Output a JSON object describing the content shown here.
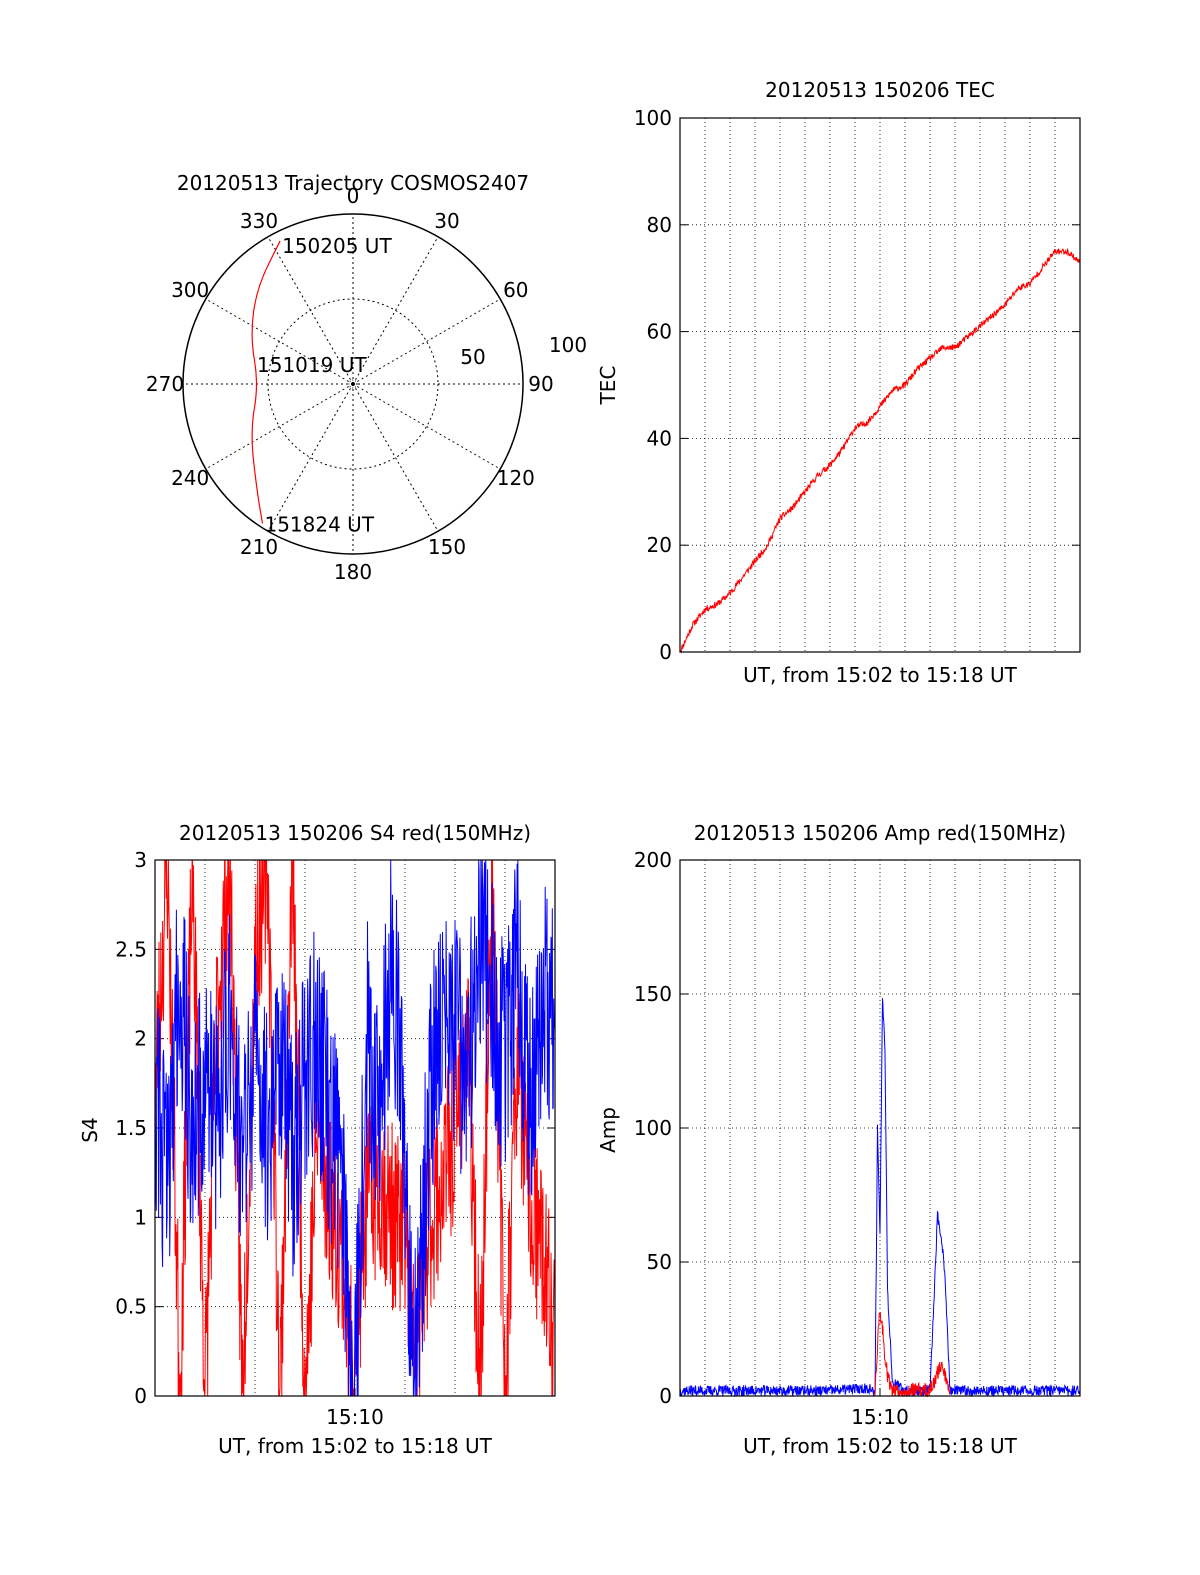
{
  "chart_data": [
    {
      "type": "polar",
      "title": "20120513 Trajectory COSMOS2407",
      "azimuth_labels": [
        "0",
        "30",
        "60",
        "90",
        "120",
        "150",
        "180",
        "210",
        "240",
        "270",
        "300",
        "330"
      ],
      "radial_labels": [
        "50",
        "100"
      ],
      "elevation_range": [
        0,
        90
      ],
      "grid": true,
      "trajectory": {
        "color": "#ff0000",
        "points": [
          {
            "az": 333,
            "el": 5
          },
          {
            "az": 315,
            "el": 18
          },
          {
            "az": 295,
            "el": 30
          },
          {
            "az": 270,
            "el": 40
          },
          {
            "az": 245,
            "el": 30
          },
          {
            "az": 222,
            "el": 14
          },
          {
            "az": 213,
            "el": 2
          }
        ],
        "annotations": [
          "150205 UT",
          "151019 UT",
          "151824 UT"
        ]
      }
    },
    {
      "type": "line",
      "title": "20120513 150206 TEC",
      "xlabel": "UT, from 15:02 to 15:18 UT",
      "ylabel": "TEC",
      "xlim": [
        0,
        16
      ],
      "ylim": [
        0,
        100
      ],
      "yticks": [
        "0",
        "20",
        "40",
        "60",
        "80",
        "100"
      ],
      "grid": true,
      "series": [
        {
          "color": "#ff0000",
          "x": [
            0,
            0.5,
            1.0,
            1.5,
            2.0,
            2.5,
            3.0,
            3.5,
            4.0,
            4.5,
            5.0,
            5.5,
            6.0,
            6.5,
            7.0,
            7.5,
            8.0,
            8.5,
            9.0,
            9.5,
            10.0,
            10.5,
            11.0,
            11.5,
            12.0,
            12.5,
            13.0,
            13.5,
            14.0,
            14.5,
            15.0,
            15.5,
            16.0
          ],
          "y": [
            0,
            5,
            8,
            9,
            11,
            14,
            17,
            20,
            25,
            27,
            30,
            33,
            35,
            38,
            42,
            43,
            46,
            49,
            50,
            53,
            55,
            57,
            57,
            59,
            61,
            63,
            65,
            68,
            69,
            72,
            75,
            75,
            73
          ]
        }
      ]
    },
    {
      "type": "line",
      "title": "20120513 150206 S4 red(150MHz)",
      "xlabel": "UT, from 15:02 to 15:18 UT",
      "ylabel": "S4",
      "xlim": [
        0,
        16
      ],
      "ylim": [
        0,
        3
      ],
      "xticks": [
        "15:10"
      ],
      "yticks": [
        "0",
        "0.5",
        "1",
        "1.5",
        "2",
        "2.5",
        "3"
      ],
      "grid": true,
      "series": [
        {
          "color": "#ff0000",
          "x": [
            0,
            0.5,
            1.0,
            1.5,
            2.0,
            2.5,
            3.0,
            3.5,
            4.0,
            4.5,
            5.0,
            5.5,
            6.0,
            6.5,
            7.0,
            7.5,
            7.8,
            8.0,
            8.5,
            9.0,
            9.5,
            10.0,
            10.3,
            10.5,
            11.0,
            11.5,
            12.0,
            12.5,
            13.0,
            13.5,
            14.0,
            14.5,
            15.0,
            15.5,
            16.0
          ],
          "y": [
            1.7,
            3.0,
            0.0,
            3.0,
            0.0,
            2.2,
            3.0,
            0.0,
            2.5,
            3.0,
            0.0,
            3.0,
            0.0,
            1.5,
            1.1,
            0.8,
            0.2,
            0.3,
            1.1,
            1.2,
            1.0,
            0.9,
            0.3,
            0.35,
            1.0,
            1.2,
            1.5,
            2.0,
            0.0,
            3.0,
            0.0,
            2.0,
            1.0,
            0.8,
            0.3
          ]
        },
        {
          "color": "#0000ff",
          "x": [
            0,
            0.5,
            1.0,
            1.5,
            2.0,
            2.5,
            3.0,
            3.5,
            4.0,
            4.5,
            5.0,
            5.5,
            6.0,
            6.5,
            7.0,
            7.5,
            7.8,
            8.0,
            8.5,
            9.0,
            9.5,
            10.0,
            10.3,
            10.5,
            11.0,
            11.5,
            12.0,
            12.5,
            13.0,
            13.5,
            14.0,
            14.5,
            15.0,
            15.5,
            16.0
          ],
          "y": [
            1.7,
            1.2,
            2.4,
            1.4,
            1.8,
            1.5,
            2.2,
            1.3,
            1.9,
            1.5,
            2.0,
            1.3,
            1.8,
            2.0,
            1.5,
            1.3,
            0.2,
            0.2,
            2.0,
            1.6,
            2.5,
            1.3,
            0.3,
            0.3,
            1.7,
            2.2,
            2.0,
            1.8,
            2.6,
            2.2,
            1.8,
            2.5,
            1.6,
            2.3,
            2.0
          ]
        }
      ]
    },
    {
      "type": "line",
      "title": "20120513 150206 Amp red(150MHz)",
      "xlabel": "UT, from 15:02 to 15:18 UT",
      "ylabel": "Amp",
      "xlim": [
        0,
        16
      ],
      "ylim": [
        0,
        200
      ],
      "xticks": [
        "15:10"
      ],
      "yticks": [
        "0",
        "50",
        "100",
        "150",
        "200"
      ],
      "grid": true,
      "series": [
        {
          "color": "#0000ff",
          "x": [
            0,
            2.0,
            4.0,
            6.0,
            7.6,
            7.8,
            7.9,
            8.0,
            8.1,
            8.2,
            8.3,
            8.5,
            9.0,
            10.0,
            10.2,
            10.3,
            10.4,
            10.5,
            10.6,
            10.8,
            11.0,
            12.0,
            14.0,
            16.0
          ],
          "y": [
            2,
            2,
            2,
            2,
            3,
            0,
            100,
            60,
            150,
            130,
            40,
            5,
            2,
            2,
            45,
            68,
            60,
            55,
            45,
            2,
            2,
            2,
            2,
            2
          ]
        },
        {
          "color": "#ff0000",
          "x": [
            7.8,
            7.9,
            8.0,
            8.1,
            8.2,
            8.3,
            8.5,
            10.0,
            10.2,
            10.4,
            10.6,
            10.8
          ],
          "y": [
            0,
            20,
            32,
            25,
            15,
            8,
            2,
            2,
            5,
            12,
            8,
            2
          ]
        }
      ]
    }
  ]
}
